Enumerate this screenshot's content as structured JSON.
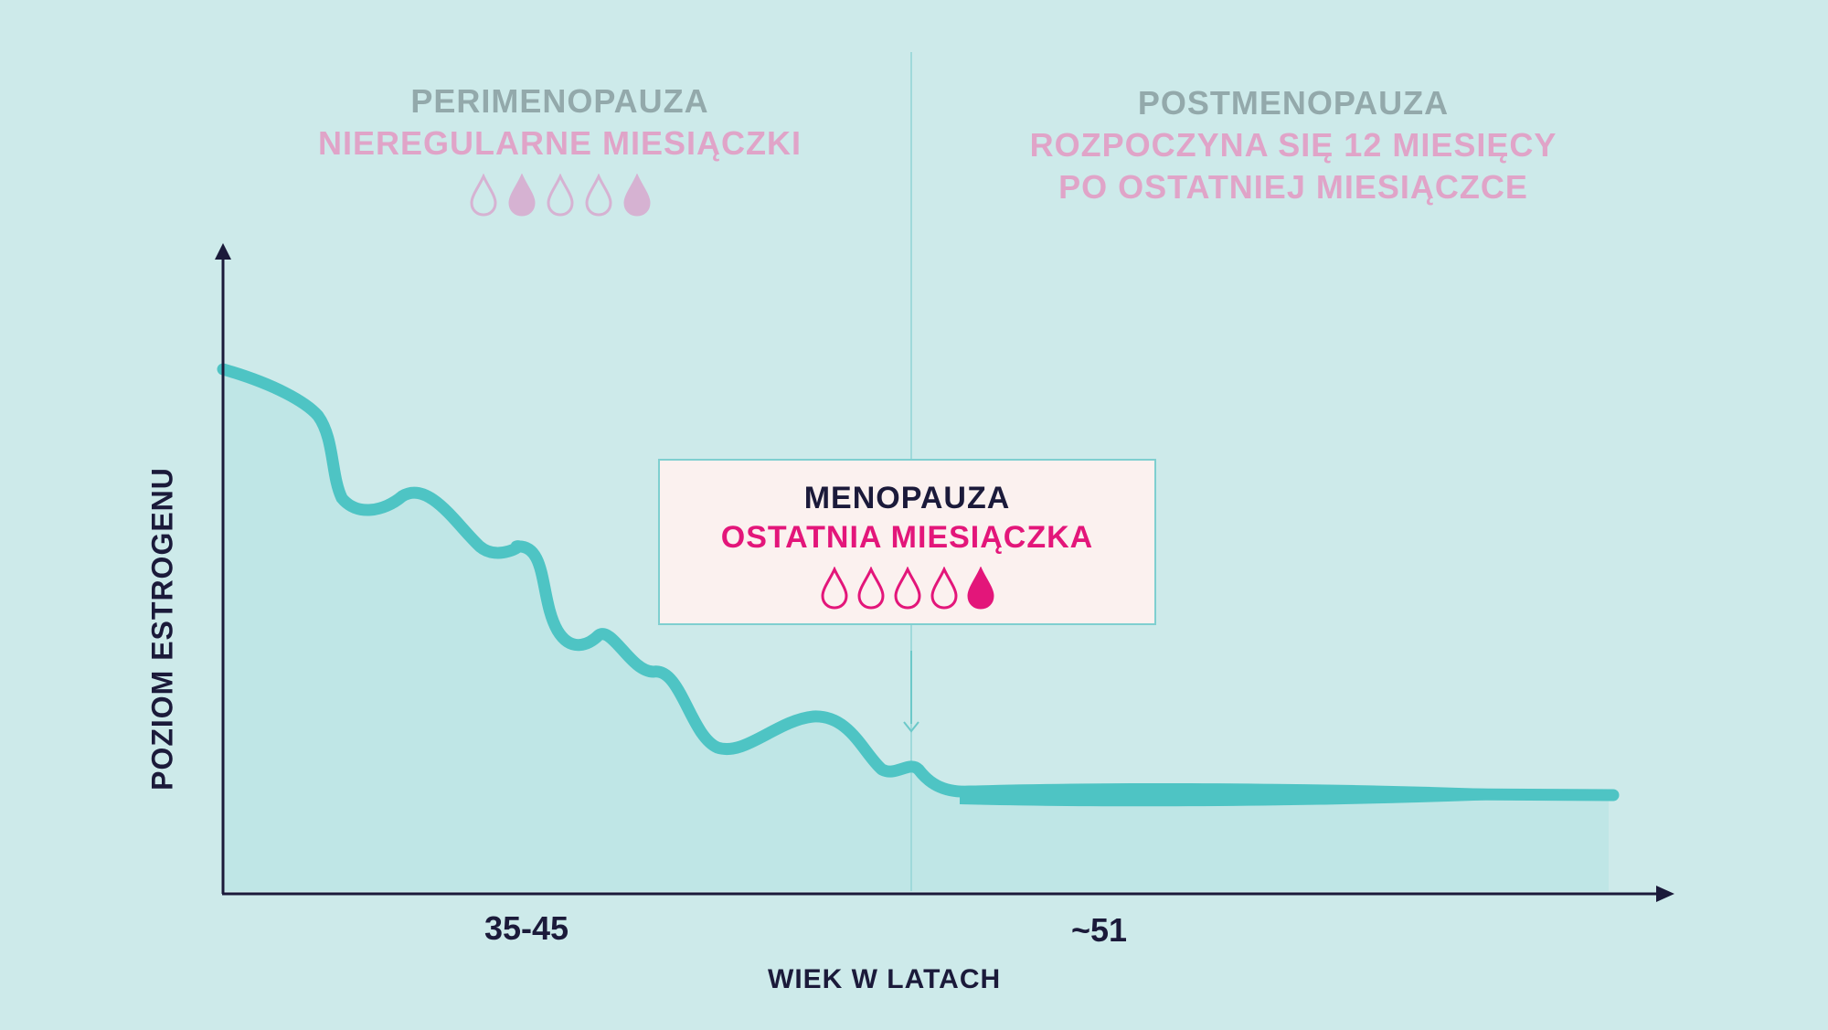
{
  "perimenopause": {
    "title": "PERIMENOPAUZA",
    "subtitle": "NIEREGULARNE MIESIĄCZKI",
    "drops": [
      false,
      true,
      false,
      false,
      true
    ],
    "color_title": "#93a9ab",
    "color_sub": "#e0a4c8"
  },
  "postmenopause": {
    "title": "POSTMENOPAUZA",
    "subtitle_line1": "ROZPOCZYNA SIĘ 12 MIESIĘCY",
    "subtitle_line2": "PO OSTATNIEJ MIESIĄCZCE"
  },
  "menopause_box": {
    "title": "MENOPAUZA",
    "subtitle": "OSTATNIA MIESIĄCZKA",
    "drops": [
      false,
      false,
      false,
      false,
      true
    ],
    "color_sub": "#e3167a"
  },
  "axes": {
    "y_title": "POZIOM ESTROGENU",
    "x_title": "WIEK W LATACH",
    "x_tick_1": "35-45",
    "x_tick_2": "~51"
  },
  "colors": {
    "background": "#cdeaea",
    "curve": "#4ec4c4",
    "area": "#bfe6e6",
    "axis": "#1b1a3a",
    "divider": "#9fd9da"
  }
}
